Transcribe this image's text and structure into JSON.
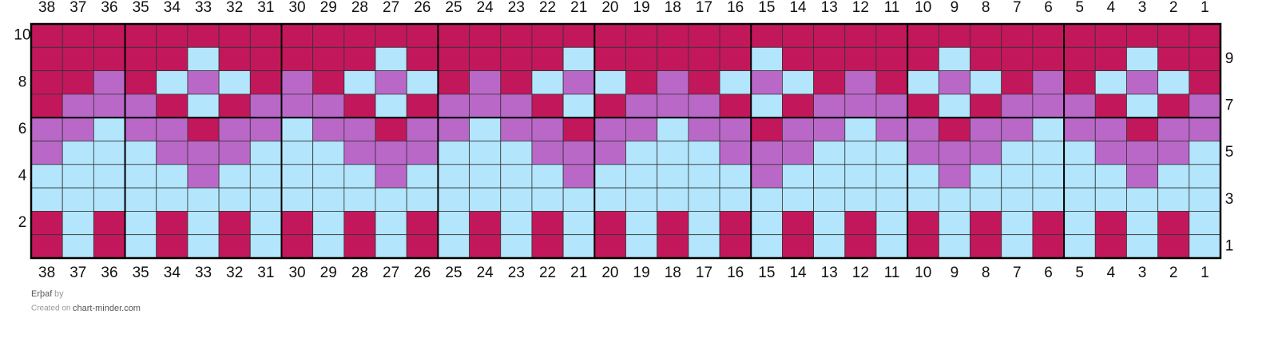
{
  "columns": [
    38,
    37,
    36,
    35,
    34,
    33,
    32,
    31,
    30,
    29,
    28,
    27,
    26,
    25,
    24,
    23,
    22,
    21,
    20,
    19,
    18,
    17,
    16,
    15,
    14,
    13,
    12,
    11,
    10,
    9,
    8,
    7,
    6,
    5,
    4,
    3,
    2,
    1
  ],
  "rows": [
    {
      "label": 10,
      "cells": "MMMMMMMMMMMMMMMMMMMMMMMMMMMMMMMMMMMMMM"
    },
    {
      "label": 9,
      "cells": "MMMMMBMMMMMBMMMMMBMMMMMBMMMMMBMMMMMBMM"
    },
    {
      "label": 8,
      "cells": "MMPMBPBMPMBPBMPMBPBMPMBPBMPMBPBMPMBPBM"
    },
    {
      "label": 7,
      "cells": "MPPPMBMPPPMBMPPPMBMPPPMBMPPPMBMPPPMBMP"
    },
    {
      "label": 6,
      "cells": "PPBPPMPPBPPMPPBPPMPPBPPMPPBPPMPPBPPMPP"
    },
    {
      "label": 5,
      "cells": "PBBBPPPBBBPPPBBBPPPBBBPPPBBBPPPBBBPPPB"
    },
    {
      "label": 4,
      "cells": "BBBBBPBBBBBPBBBBBPBBBBBPBBBBBPBBBBBPBB"
    },
    {
      "label": 3,
      "cells": "BBBBBBBBBBBBBBBBBBBBBBBBBBBBBBBBBBBBBB"
    },
    {
      "label": 2,
      "cells": "MBMBMBMBMBMBMBMBMBMBMBMBMBMBMBMBMBMBMB"
    },
    {
      "label": 1,
      "cells": "MBMBMBMBMBMBMBMBMBMBMBMBMBMBMBMBMBMBMB"
    }
  ],
  "palette": {
    "M": "#c2185b",
    "P": "#ba68c8",
    "B": "#b3e5fc"
  },
  "footer": {
    "title": "Erþaf",
    "by": "by",
    "created_on": "Created on",
    "site": "chart-minder.com"
  }
}
